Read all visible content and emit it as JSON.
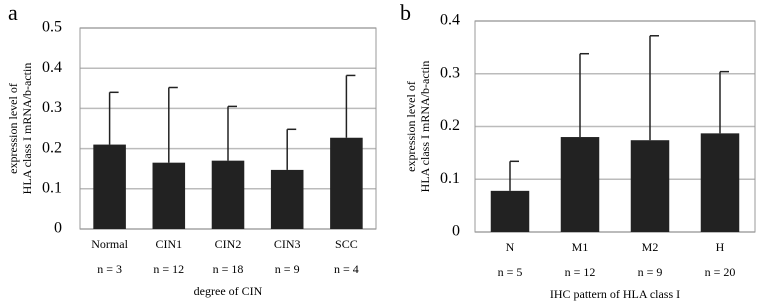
{
  "chart_data": [
    {
      "type": "bar",
      "panel": "a",
      "ylabel": [
        "expression level of",
        "HLA class I mRNA/b-actin"
      ],
      "xlabel": "degree of CIN",
      "categories": [
        "Normal",
        "CIN1",
        "CIN2",
        "CIN3",
        "SCC"
      ],
      "sample_sizes": [
        "n = 3",
        "n = 12",
        "n = 18",
        "n = 9",
        "n = 4"
      ],
      "values": [
        0.21,
        0.165,
        0.17,
        0.147,
        0.227
      ],
      "errors": [
        0.13,
        0.187,
        0.135,
        0.101,
        0.155
      ],
      "color": "#222222",
      "ylim": [
        0,
        0.5
      ],
      "yticks": [
        0,
        0.1,
        0.2,
        0.3,
        0.4,
        0.5
      ],
      "grid": true
    },
    {
      "type": "bar",
      "panel": "b",
      "ylabel": [
        "expression level of",
        "HLA class I mRNA/b-actin"
      ],
      "xlabel": "IHC pattern of HLA class I",
      "categories": [
        "N",
        "M1",
        "M2",
        "H"
      ],
      "sample_sizes": [
        "n = 5",
        "n = 12",
        "n = 9",
        "n = 20"
      ],
      "values": [
        0.078,
        0.18,
        0.174,
        0.187
      ],
      "errors": [
        0.056,
        0.158,
        0.198,
        0.117
      ],
      "color": "#222222",
      "ylim": [
        0,
        0.4
      ],
      "yticks": [
        0,
        0.1,
        0.2,
        0.3,
        0.4
      ],
      "grid": true
    }
  ]
}
